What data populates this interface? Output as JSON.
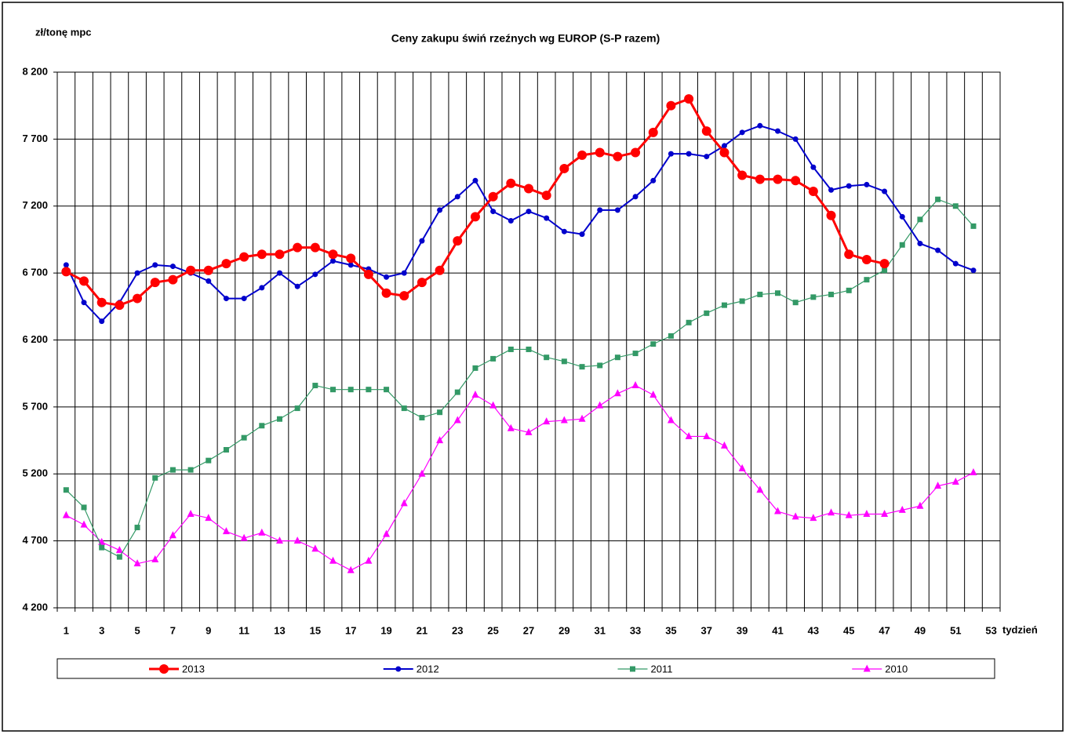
{
  "chart_data": {
    "type": "line",
    "title": "Ceny zakupu świń rzeźnych wg EUROP (S-P razem)",
    "y_label": "zł/tonę mpc",
    "x_label": "tydzień",
    "categories": [
      1,
      null,
      3,
      null,
      5,
      null,
      7,
      null,
      9,
      null,
      11,
      null,
      13,
      null,
      15,
      null,
      17,
      null,
      19,
      null,
      21,
      null,
      23,
      null,
      25,
      null,
      27,
      null,
      29,
      null,
      31,
      null,
      33,
      null,
      35,
      null,
      37,
      null,
      39,
      null,
      41,
      null,
      43,
      null,
      45,
      null,
      47,
      null,
      49,
      null,
      51,
      null,
      53
    ],
    "ylim": [
      4200,
      8200
    ],
    "yticks": [
      {
        "value": 4200,
        "label": "4 200"
      },
      {
        "value": 4700,
        "label": "4 700"
      },
      {
        "value": 5200,
        "label": "5 200"
      },
      {
        "value": 5700,
        "label": "5 700"
      },
      {
        "value": 6200,
        "label": "6 200"
      },
      {
        "value": 6700,
        "label": "6 700"
      },
      {
        "value": 7200,
        "label": "7 200"
      },
      {
        "value": 7700,
        "label": "7 700"
      },
      {
        "value": 8200,
        "label": "8 200"
      }
    ],
    "grid": true,
    "legend": "bottom",
    "series": [
      {
        "name": "2013",
        "color": "#ff0000",
        "marker": "circle",
        "values": [
          6710,
          6640,
          6480,
          6460,
          6510,
          6630,
          6650,
          6720,
          6720,
          6770,
          6820,
          6840,
          6840,
          6890,
          6890,
          6840,
          6810,
          6690,
          6550,
          6530,
          6630,
          6720,
          6940,
          7120,
          7270,
          7370,
          7330,
          7280,
          7480,
          7580,
          7600,
          7570,
          7600,
          7750,
          7950,
          8000,
          7760,
          7600,
          7430,
          7400,
          7400,
          7390,
          7310,
          7130,
          6840,
          6800,
          6770,
          null,
          null,
          null,
          null,
          null,
          null
        ]
      },
      {
        "name": "2012",
        "color": "#0000cc",
        "marker": "dot",
        "values": [
          6760,
          6480,
          6340,
          6480,
          6700,
          6760,
          6750,
          6700,
          6640,
          6510,
          6510,
          6590,
          6700,
          6600,
          6690,
          6790,
          6760,
          6730,
          6670,
          6700,
          6940,
          7170,
          7270,
          7390,
          7160,
          7090,
          7160,
          7110,
          7010,
          6990,
          7170,
          7170,
          7270,
          7390,
          7590,
          7590,
          7570,
          7650,
          7750,
          7800,
          7760,
          7700,
          7490,
          7320,
          7350,
          7360,
          7310,
          7120,
          6920,
          6870,
          6770,
          6720,
          null
        ]
      },
      {
        "name": "2011",
        "color": "#339966",
        "marker": "square",
        "values": [
          5080,
          4950,
          4650,
          4580,
          4800,
          5170,
          5230,
          5230,
          5300,
          5380,
          5470,
          5560,
          5610,
          5690,
          5860,
          5830,
          5830,
          5830,
          5830,
          5690,
          5620,
          5660,
          5810,
          5990,
          6060,
          6130,
          6130,
          6070,
          6040,
          6000,
          6010,
          6070,
          6100,
          6170,
          6230,
          6330,
          6400,
          6460,
          6490,
          6540,
          6550,
          6480,
          6520,
          6540,
          6570,
          6650,
          6720,
          6910,
          7100,
          7250,
          7200,
          7050,
          null
        ]
      },
      {
        "name": "2010",
        "color": "#ff00ff",
        "marker": "triangle",
        "values": [
          4890,
          4820,
          4690,
          4630,
          4530,
          4560,
          4740,
          4900,
          4870,
          4770,
          4720,
          4760,
          4700,
          4700,
          4640,
          4550,
          4480,
          4550,
          4750,
          4980,
          5200,
          5450,
          5600,
          5790,
          5710,
          5540,
          5510,
          5590,
          5600,
          5610,
          5710,
          5800,
          5860,
          5790,
          5600,
          5480,
          5480,
          5410,
          5240,
          5080,
          4920,
          4880,
          4870,
          4910,
          4890,
          4900,
          4900,
          4930,
          4960,
          5110,
          5140,
          5210,
          null
        ]
      }
    ]
  }
}
